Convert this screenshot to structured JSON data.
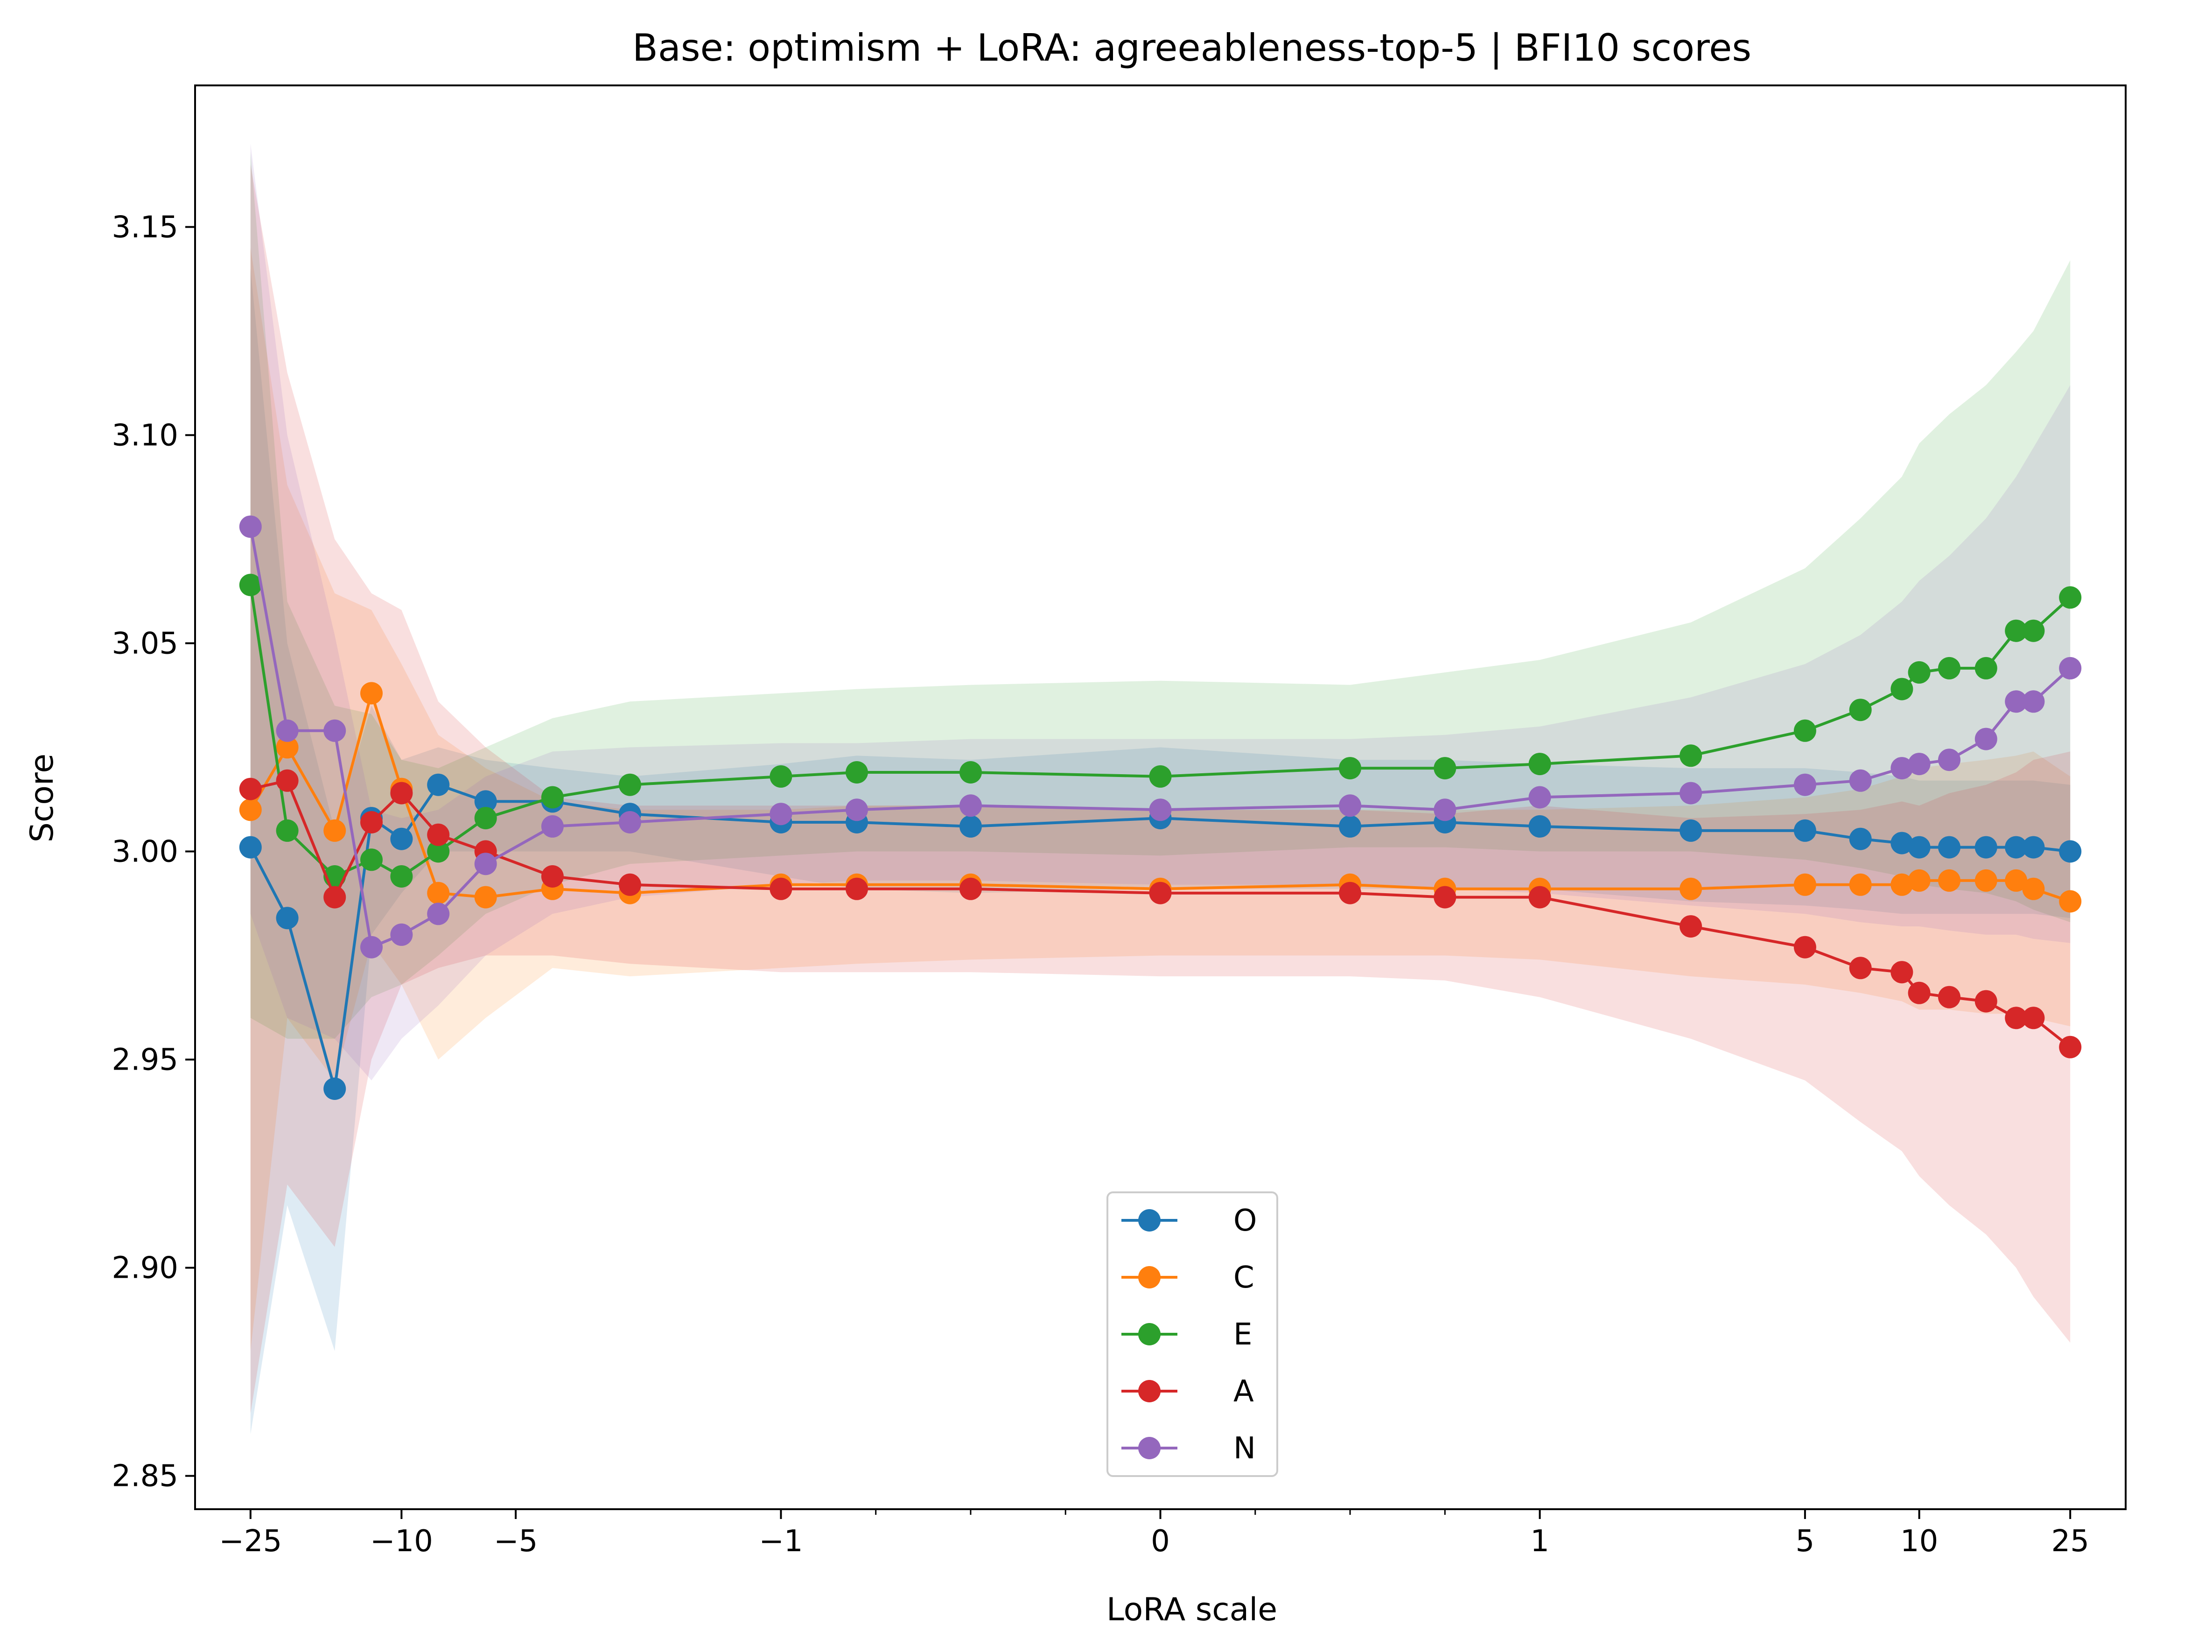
{
  "chart_data": {
    "type": "line",
    "title": "Base: optimism + LoRA: agreeableness-top-5 | BFI10 scores",
    "xlabel": "LoRA scale",
    "ylabel": "Score",
    "x_scale": "symlog",
    "symlog_linthresh": 1,
    "xlim": [
      -35,
      35
    ],
    "ylim": [
      2.842,
      3.184
    ],
    "x_ticks": [
      {
        "value": -25,
        "label": "−25"
      },
      {
        "value": -10,
        "label": "−10"
      },
      {
        "value": -5,
        "label": "−5"
      },
      {
        "value": -1,
        "label": "−1"
      },
      {
        "value": 0,
        "label": "0"
      },
      {
        "value": 1,
        "label": "1"
      },
      {
        "value": 5,
        "label": "5"
      },
      {
        "value": 10,
        "label": "10"
      },
      {
        "value": 25,
        "label": "25"
      }
    ],
    "x_minor_ticks": [
      -0.75,
      -0.5,
      -0.25,
      0.25,
      0.5,
      0.75
    ],
    "y_ticks": [
      {
        "value": 2.85,
        "label": "2.85"
      },
      {
        "value": 2.9,
        "label": "2.90"
      },
      {
        "value": 2.95,
        "label": "2.95"
      },
      {
        "value": 3.0,
        "label": "3.00"
      },
      {
        "value": 3.05,
        "label": "3.05"
      },
      {
        "value": 3.1,
        "label": "3.10"
      },
      {
        "value": 3.15,
        "label": "3.15"
      }
    ],
    "grid": false,
    "legend_position": "lower-center",
    "x": [
      -25,
      -20,
      -15,
      -12,
      -10,
      -8,
      -6,
      -4,
      -2.5,
      -1,
      -0.8,
      -0.5,
      0,
      0.5,
      0.75,
      1,
      2.5,
      5,
      7,
      9,
      10,
      12,
      15,
      18,
      20,
      25
    ],
    "series": [
      {
        "name": "O",
        "color": "#1f77b4",
        "values": [
          3.001,
          2.984,
          2.943,
          3.008,
          3.003,
          3.016,
          3.012,
          3.012,
          3.009,
          3.007,
          3.007,
          3.006,
          3.008,
          3.006,
          3.007,
          3.006,
          3.005,
          3.005,
          3.003,
          3.002,
          3.001,
          3.001,
          3.001,
          3.001,
          3.001,
          3.0
        ],
        "band_lower": [
          2.86,
          2.915,
          2.88,
          2.98,
          2.99,
          3.0,
          3.0,
          3.0,
          3.0,
          2.994,
          2.991,
          2.99,
          2.991,
          2.991,
          2.991,
          2.991,
          2.988,
          2.987,
          2.986,
          2.985,
          2.985,
          2.985,
          2.985,
          2.985,
          2.985,
          2.984
        ],
        "band_upper": [
          3.14,
          3.05,
          3.005,
          3.035,
          3.022,
          3.025,
          3.022,
          3.02,
          3.018,
          3.021,
          3.023,
          3.022,
          3.025,
          3.022,
          3.022,
          3.021,
          3.02,
          3.02,
          3.019,
          3.018,
          3.017,
          3.017,
          3.017,
          3.017,
          3.017,
          3.016
        ]
      },
      {
        "name": "C",
        "color": "#ff7f0e",
        "values": [
          3.01,
          3.025,
          3.005,
          3.038,
          3.015,
          2.99,
          2.989,
          2.991,
          2.99,
          2.992,
          2.992,
          2.992,
          2.991,
          2.992,
          2.991,
          2.991,
          2.991,
          2.992,
          2.992,
          2.992,
          2.993,
          2.993,
          2.993,
          2.993,
          2.991,
          2.988
        ],
        "band_lower": [
          2.88,
          2.96,
          2.945,
          2.978,
          2.968,
          2.95,
          2.96,
          2.972,
          2.97,
          2.972,
          2.973,
          2.974,
          2.975,
          2.975,
          2.975,
          2.974,
          2.97,
          2.968,
          2.966,
          2.964,
          2.962,
          2.962,
          2.961,
          2.961,
          2.96,
          2.958
        ],
        "band_upper": [
          3.145,
          3.088,
          3.062,
          3.058,
          3.045,
          3.028,
          3.02,
          3.012,
          3.01,
          3.01,
          3.011,
          3.011,
          3.01,
          3.01,
          3.01,
          3.01,
          3.011,
          3.013,
          3.015,
          3.018,
          3.02,
          3.021,
          3.022,
          3.023,
          3.024,
          3.018
        ]
      },
      {
        "name": "E",
        "color": "#2ca02c",
        "values": [
          3.064,
          3.005,
          2.994,
          2.998,
          2.994,
          3.0,
          3.008,
          3.013,
          3.016,
          3.018,
          3.019,
          3.019,
          3.018,
          3.02,
          3.02,
          3.021,
          3.023,
          3.029,
          3.034,
          3.039,
          3.043,
          3.044,
          3.044,
          3.053,
          3.053,
          3.061
        ],
        "band_lower": [
          2.96,
          2.955,
          2.955,
          2.965,
          2.968,
          2.975,
          2.985,
          2.992,
          2.997,
          2.999,
          3.0,
          3.0,
          2.999,
          3.001,
          3.001,
          3.0,
          3.0,
          2.998,
          2.996,
          2.994,
          2.992,
          2.991,
          2.99,
          2.988,
          2.986,
          2.983
        ],
        "band_upper": [
          3.168,
          3.06,
          3.035,
          3.033,
          3.022,
          3.02,
          3.025,
          3.032,
          3.036,
          3.038,
          3.039,
          3.04,
          3.041,
          3.04,
          3.043,
          3.046,
          3.055,
          3.068,
          3.08,
          3.09,
          3.098,
          3.105,
          3.112,
          3.12,
          3.125,
          3.142
        ]
      },
      {
        "name": "A",
        "color": "#d62728",
        "values": [
          3.015,
          3.017,
          2.989,
          3.007,
          3.014,
          3.004,
          3.0,
          2.994,
          2.992,
          2.991,
          2.991,
          2.991,
          2.99,
          2.99,
          2.989,
          2.989,
          2.982,
          2.977,
          2.972,
          2.971,
          2.966,
          2.965,
          2.964,
          2.96,
          2.96,
          2.953
        ],
        "band_lower": [
          2.865,
          2.92,
          2.905,
          2.95,
          2.968,
          2.972,
          2.975,
          2.975,
          2.973,
          2.971,
          2.971,
          2.971,
          2.97,
          2.97,
          2.969,
          2.965,
          2.955,
          2.945,
          2.935,
          2.928,
          2.922,
          2.915,
          2.908,
          2.9,
          2.893,
          2.882
        ],
        "band_upper": [
          3.165,
          3.115,
          3.075,
          3.062,
          3.058,
          3.036,
          3.025,
          3.013,
          3.011,
          3.011,
          3.011,
          3.011,
          3.01,
          3.01,
          3.009,
          3.011,
          3.008,
          3.009,
          3.01,
          3.012,
          3.011,
          3.014,
          3.016,
          3.019,
          3.022,
          3.024
        ]
      },
      {
        "name": "N",
        "color": "#9467bd",
        "values": [
          3.078,
          3.029,
          3.029,
          2.977,
          2.98,
          2.985,
          2.997,
          3.006,
          3.007,
          3.009,
          3.01,
          3.011,
          3.01,
          3.011,
          3.01,
          3.013,
          3.014,
          3.016,
          3.017,
          3.02,
          3.021,
          3.022,
          3.027,
          3.036,
          3.036,
          3.044
        ],
        "band_lower": [
          2.985,
          2.96,
          2.955,
          2.945,
          2.955,
          2.963,
          2.975,
          2.985,
          2.989,
          2.992,
          2.993,
          2.993,
          2.992,
          2.992,
          2.991,
          2.99,
          2.987,
          2.985,
          2.983,
          2.982,
          2.982,
          2.981,
          2.98,
          2.98,
          2.979,
          2.978
        ],
        "band_upper": [
          3.17,
          3.1,
          3.052,
          3.01,
          3.008,
          3.01,
          3.018,
          3.024,
          3.025,
          3.026,
          3.026,
          3.027,
          3.027,
          3.027,
          3.028,
          3.03,
          3.037,
          3.045,
          3.052,
          3.06,
          3.065,
          3.071,
          3.08,
          3.09,
          3.097,
          3.112
        ]
      }
    ]
  }
}
